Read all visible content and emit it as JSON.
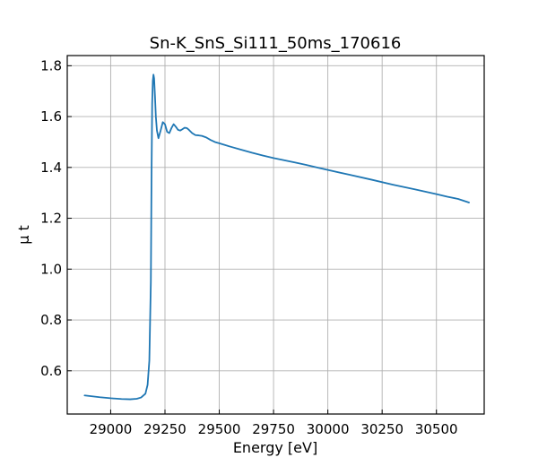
{
  "chart_data": {
    "type": "line",
    "title": "Sn-K_SnS_Si111_50ms_170616",
    "xlabel": "Energy [eV]",
    "ylabel": "μ t",
    "xlim": [
      28800,
      30720
    ],
    "ylim": [
      0.43,
      1.84
    ],
    "xticks": [
      29000,
      29250,
      29500,
      29750,
      30000,
      30250,
      30500
    ],
    "yticks": [
      0.6,
      0.8,
      1.0,
      1.2,
      1.4,
      1.6,
      1.8
    ],
    "ytick_labels": [
      "0.6",
      "0.8",
      "1.0",
      "1.2",
      "1.4",
      "1.6",
      "1.8"
    ],
    "grid": true,
    "series_color": "#1f77b4",
    "series": [
      {
        "x": [
          28880,
          28950,
          29000,
          29050,
          29090,
          29120,
          29140,
          29160,
          29170,
          29178,
          29185,
          29188,
          29191,
          29194,
          29197,
          29200,
          29204,
          29208,
          29213,
          29220,
          29230,
          29240,
          29250,
          29260,
          29270,
          29280,
          29290,
          29300,
          29310,
          29320,
          29330,
          29340,
          29350,
          29360,
          29375,
          29390,
          29405,
          29420,
          29440,
          29460,
          29480,
          29500,
          29550,
          29600,
          29650,
          29700,
          29750,
          29800,
          29850,
          29900,
          29950,
          30000,
          30100,
          30200,
          30300,
          30400,
          30500,
          30550,
          30600,
          30650
        ],
        "y": [
          0.503,
          0.496,
          0.492,
          0.489,
          0.488,
          0.49,
          0.495,
          0.51,
          0.545,
          0.64,
          0.95,
          1.35,
          1.65,
          1.74,
          1.765,
          1.75,
          1.68,
          1.6,
          1.545,
          1.515,
          1.545,
          1.578,
          1.57,
          1.54,
          1.535,
          1.555,
          1.57,
          1.56,
          1.548,
          1.545,
          1.55,
          1.556,
          1.555,
          1.548,
          1.535,
          1.527,
          1.526,
          1.524,
          1.518,
          1.508,
          1.5,
          1.495,
          1.482,
          1.47,
          1.458,
          1.447,
          1.437,
          1.428,
          1.419,
          1.41,
          1.4,
          1.39,
          1.371,
          1.352,
          1.332,
          1.314,
          1.295,
          1.285,
          1.276,
          1.262
        ]
      }
    ]
  }
}
